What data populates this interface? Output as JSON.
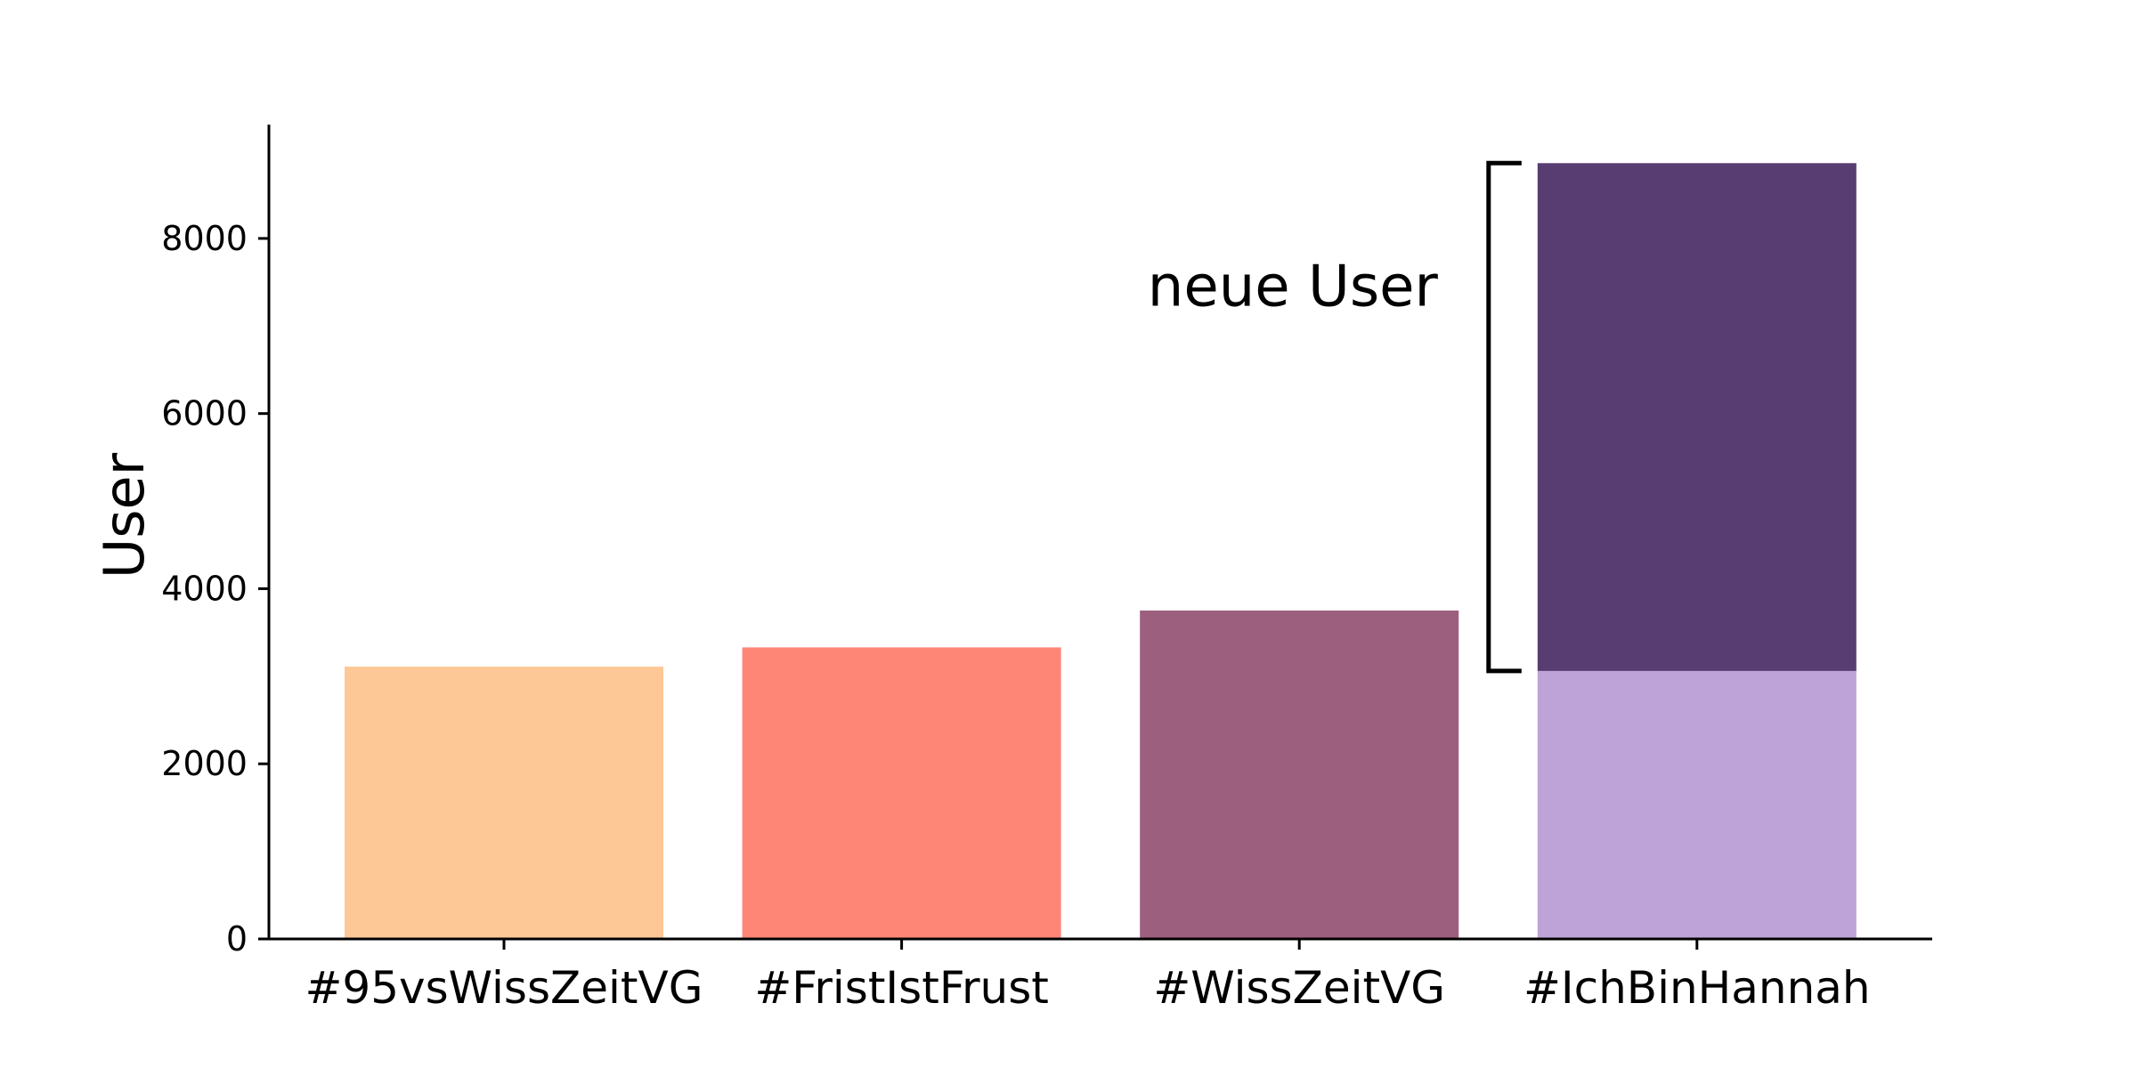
{
  "chart_data": {
    "type": "bar",
    "stacked": true,
    "categories": [
      "#95vsWissZeitVG",
      "#FristIstFrust",
      "#WissZeitVG",
      "#IchBinHannah"
    ],
    "series": [
      {
        "values": [
          3110,
          3330,
          3750,
          3060
        ],
        "colors": [
          "#fdc896",
          "#fe8677",
          "#9d5f7e",
          "#bea3d8"
        ]
      },
      {
        "values": [
          0,
          0,
          0,
          5800
        ],
        "colors": [
          "#583d72",
          "#583d72",
          "#583d72",
          "#583d72"
        ]
      }
    ],
    "title": "",
    "xlabel": "",
    "ylabel": "User",
    "ylim": [
      0,
      9300
    ],
    "yticks": [
      0,
      2000,
      4000,
      6000,
      8000
    ],
    "ytick_labels": [
      "0",
      "2000",
      "4000",
      "6000",
      "8000"
    ],
    "grid": false,
    "annotations": [
      {
        "text": "neue User",
        "category": "#IchBinHannah",
        "y_from": 3060,
        "y_to": 8860
      }
    ]
  }
}
